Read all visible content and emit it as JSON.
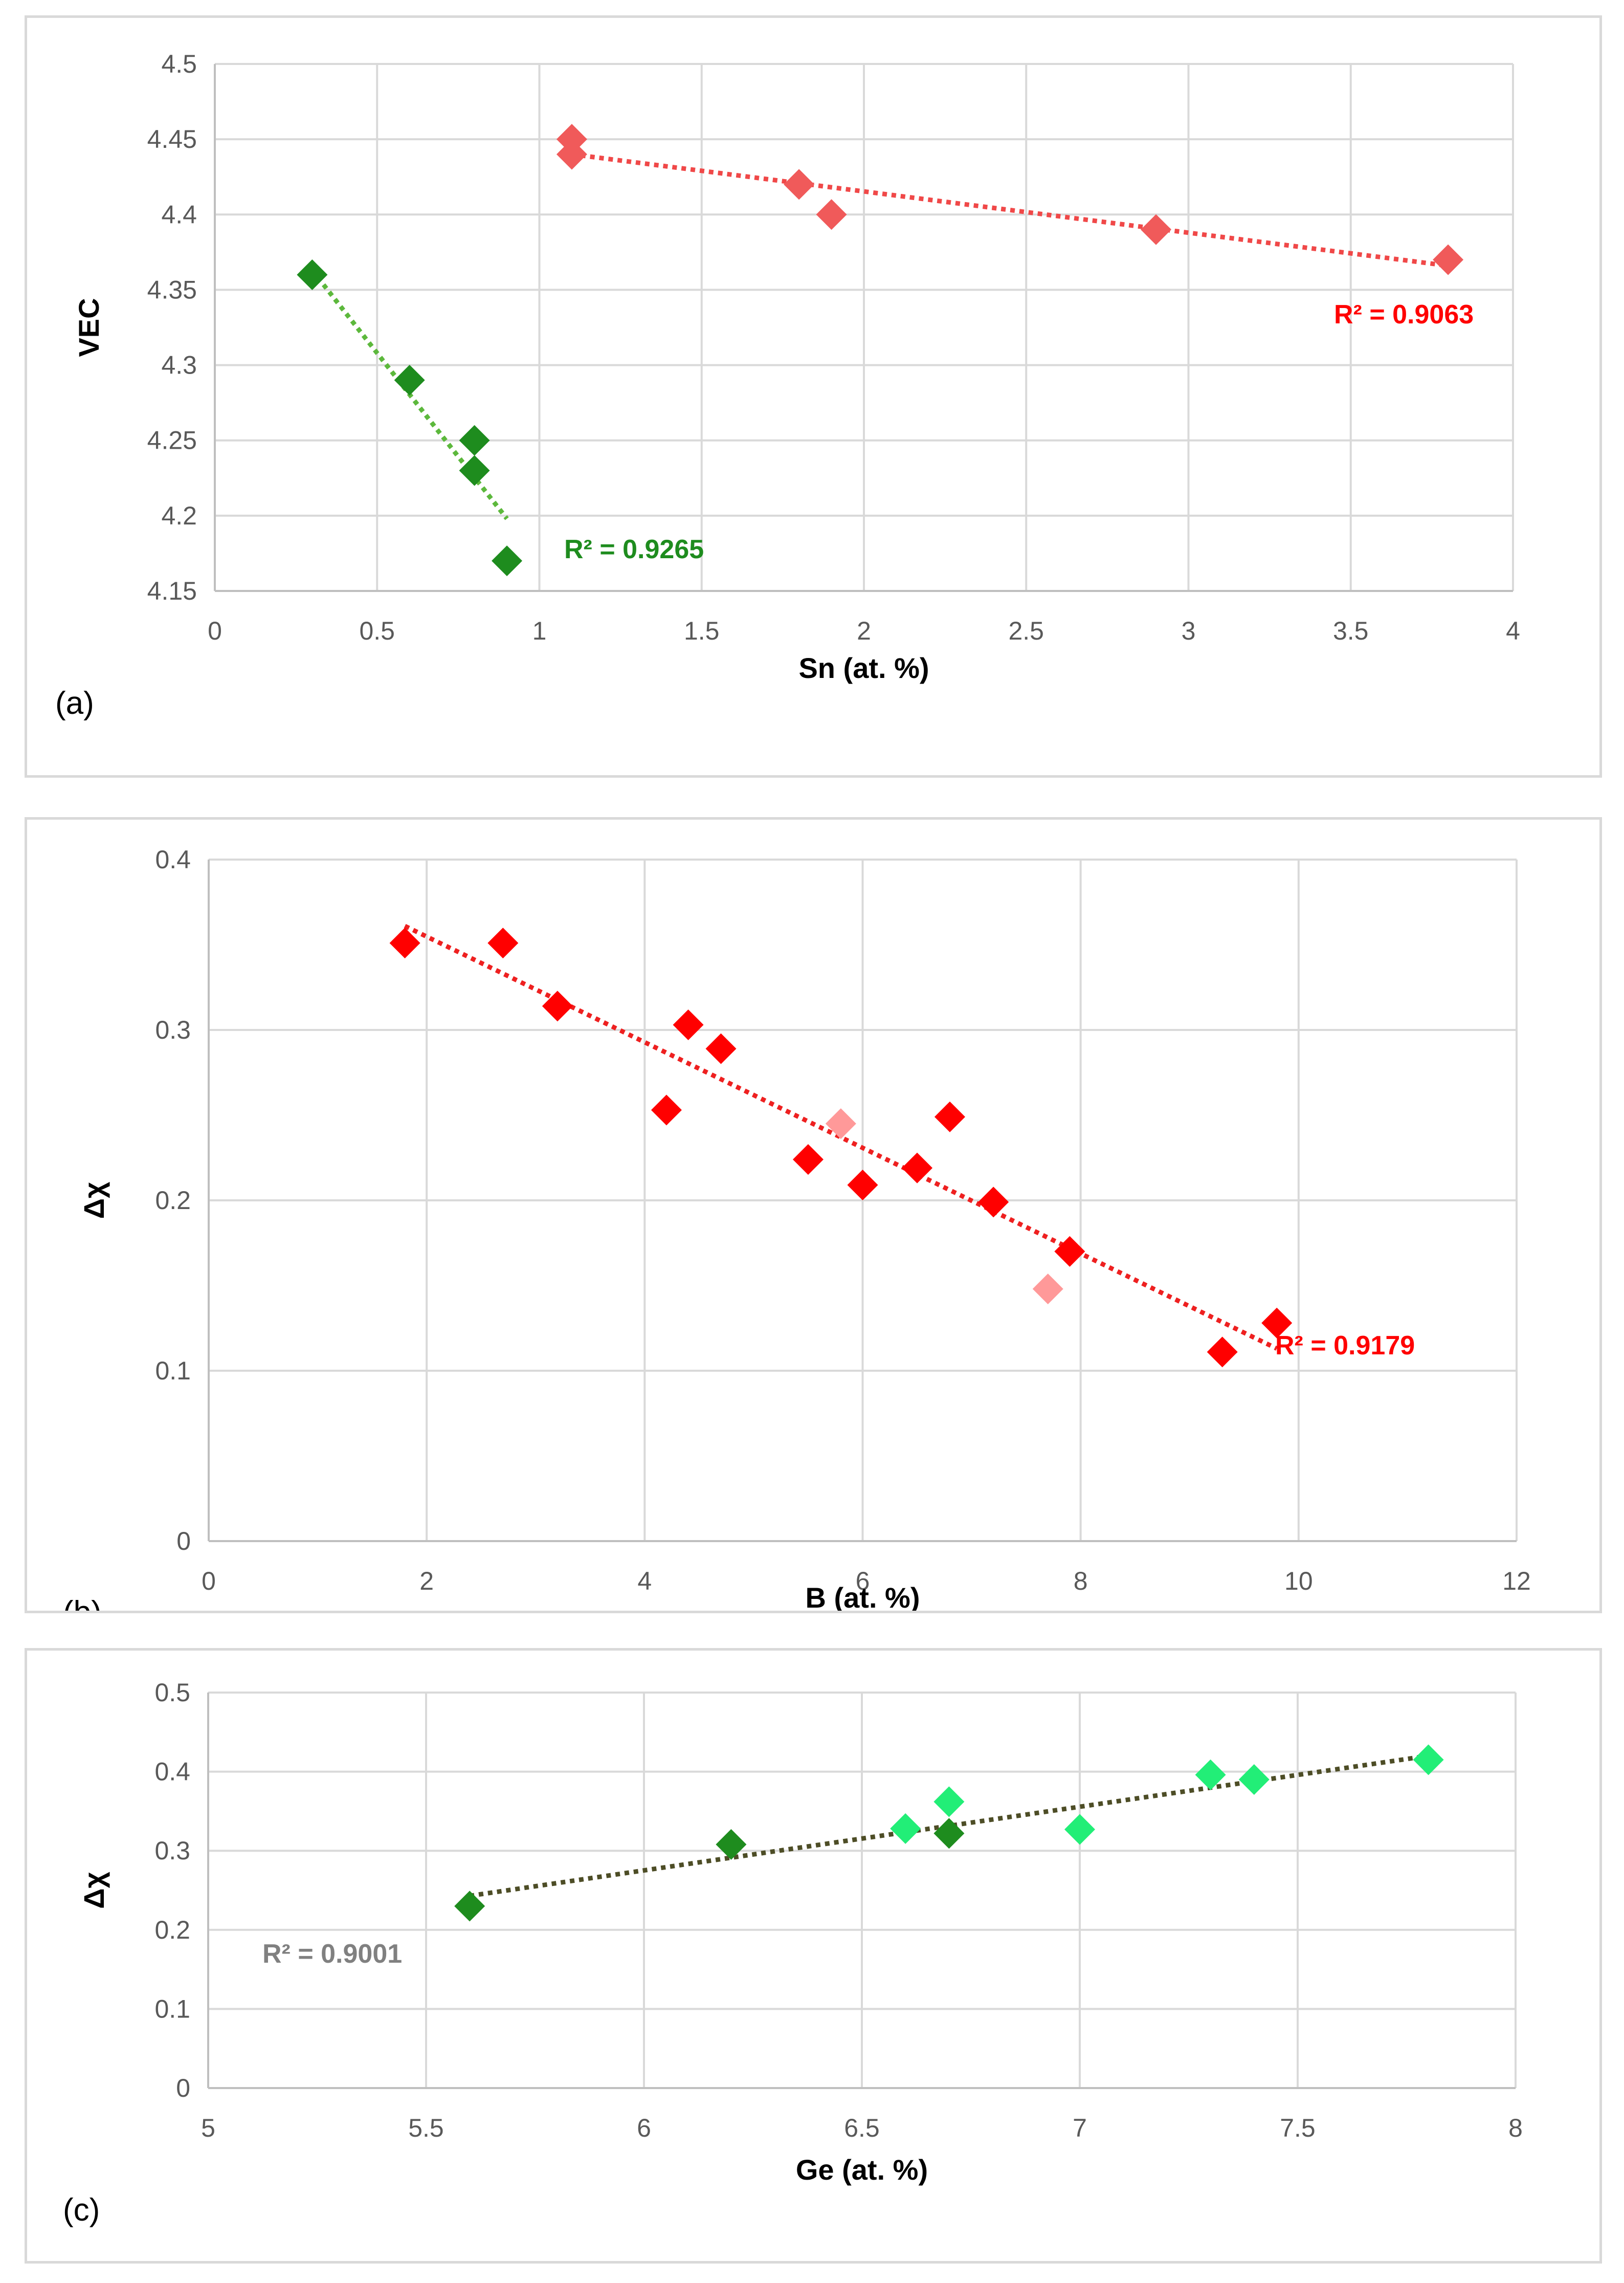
{
  "chart_data": [
    {
      "type": "scatter",
      "panel_label": "(a)",
      "xlabel": "Sn (at. %)",
      "ylabel": "VEC",
      "xlim": [
        0,
        4
      ],
      "ylim": [
        4.15,
        4.5
      ],
      "xticks": [
        "0",
        "0.5",
        "1",
        "1.5",
        "2",
        "2.5",
        "3",
        "3.5",
        "4"
      ],
      "yticks": [
        "4.15",
        "4.2",
        "4.25",
        "4.3",
        "4.35",
        "4.4",
        "4.45",
        "4.5"
      ],
      "grid": true,
      "series": [
        {
          "name": "green",
          "color": "#1e8c1e",
          "points": [
            [
              0.3,
              4.36
            ],
            [
              0.6,
              4.29
            ],
            [
              0.8,
              4.25
            ],
            [
              0.8,
              4.23
            ],
            [
              0.9,
              4.17
            ]
          ],
          "trendline": {
            "x": [
              0.3,
              0.9
            ],
            "y": [
              4.363,
              4.198
            ],
            "color": "#5cb83c"
          },
          "r2_label": "R² = 0.9265"
        },
        {
          "name": "red",
          "color": "#f05a5a",
          "points": [
            [
              1.1,
              4.45
            ],
            [
              1.1,
              4.44
            ],
            [
              1.8,
              4.42
            ],
            [
              1.9,
              4.4
            ],
            [
              2.9,
              4.39
            ],
            [
              3.8,
              4.37
            ]
          ],
          "trendline": {
            "x": [
              1.1,
              3.8
            ],
            "y": [
              4.44,
              4.366
            ],
            "color": "#f04848"
          },
          "r2_label": "R² = 0.9063",
          "r2_color": "#ff0000"
        }
      ]
    },
    {
      "type": "scatter",
      "panel_label": "(b)",
      "xlabel": "B (at. %)",
      "ylabel": "Δχ",
      "xlim": [
        0,
        12
      ],
      "ylim": [
        0,
        0.4
      ],
      "xticks": [
        "0",
        "2",
        "4",
        "6",
        "8",
        "10",
        "12"
      ],
      "yticks": [
        "0",
        "0.1",
        "0.2",
        "0.3",
        "0.4"
      ],
      "grid": true,
      "series": [
        {
          "name": "red",
          "color": "#ff0000",
          "points": [
            [
              1.8,
              0.351
            ],
            [
              2.7,
              0.351
            ],
            [
              3.2,
              0.314
            ],
            [
              4.2,
              0.253
            ],
            [
              4.4,
              0.303
            ],
            [
              4.7,
              0.289
            ],
            [
              5.5,
              0.224
            ],
            [
              6.0,
              0.209
            ],
            [
              6.5,
              0.219
            ],
            [
              6.8,
              0.249
            ],
            [
              7.2,
              0.199
            ],
            [
              7.9,
              0.17
            ],
            [
              9.3,
              0.111
            ],
            [
              9.8,
              0.128
            ]
          ],
          "trendline": {
            "x": [
              1.8,
              9.8
            ],
            "y": [
              0.361,
              0.113
            ],
            "color": "#ee2020"
          },
          "r2_label": "R² = 0.9179",
          "r2_color": "#ff0000"
        },
        {
          "name": "light-red",
          "color": "#ff9999",
          "points": [
            [
              5.8,
              0.245
            ],
            [
              7.7,
              0.148
            ]
          ]
        }
      ]
    },
    {
      "type": "scatter",
      "panel_label": "(c)",
      "xlabel": "Ge (at. %)",
      "ylabel": "Δχ",
      "xlim": [
        5,
        8
      ],
      "ylim": [
        0,
        0.5
      ],
      "xticks": [
        "5",
        "5.5",
        "6",
        "6.5",
        "7",
        "7.5",
        "8"
      ],
      "yticks": [
        "0",
        "0.1",
        "0.2",
        "0.3",
        "0.4",
        "0.5"
      ],
      "grid": true,
      "series": [
        {
          "name": "dark-green",
          "color": "#1e8c1e",
          "points": [
            [
              5.6,
              0.23
            ],
            [
              6.2,
              0.308
            ],
            [
              6.7,
              0.322
            ]
          ]
        },
        {
          "name": "bright-green",
          "color": "#22ee77",
          "points": [
            [
              6.6,
              0.328
            ],
            [
              6.7,
              0.362
            ],
            [
              7.0,
              0.327
            ],
            [
              7.3,
              0.396
            ],
            [
              7.4,
              0.39
            ],
            [
              7.8,
              0.415
            ]
          ]
        }
      ],
      "trendline": {
        "x": [
          5.6,
          7.8
        ],
        "y": [
          0.243,
          0.42
        ],
        "color": "#4d4d26"
      },
      "r2_label": "R² = 0.9001",
      "r2_color": "#808080"
    }
  ]
}
